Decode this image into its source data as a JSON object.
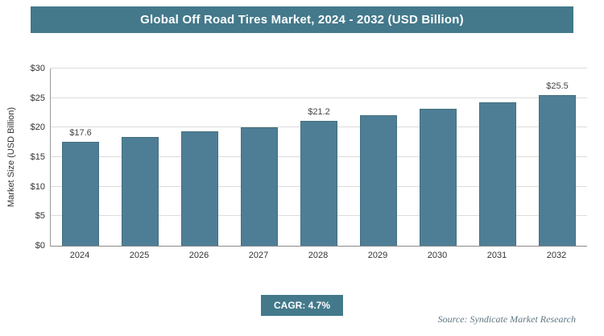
{
  "colors": {
    "header": "#43798b",
    "bar": "#4e7e96",
    "bar_border": "#44707f",
    "gridline": "#dcdcdc",
    "source_text": "#5f7582"
  },
  "chart_data": {
    "type": "bar",
    "title": "Global Off Road Tires Market, 2024 - 2032 (USD Billion)",
    "ylabel": "Market Size (USD Billion)",
    "xlabel": "",
    "categories": [
      "2024",
      "2025",
      "2026",
      "2027",
      "2028",
      "2029",
      "2030",
      "2031",
      "2032"
    ],
    "values": [
      17.6,
      18.4,
      19.3,
      20.1,
      21.2,
      22.1,
      23.2,
      24.3,
      25.5
    ],
    "labels": [
      "$17.6",
      "",
      "",
      "",
      "$21.2",
      "",
      "",
      "",
      "$25.5"
    ],
    "ylim": [
      0,
      30
    ],
    "yticks": [
      "$0",
      "$5",
      "$10",
      "$15",
      "$20",
      "$25",
      "$30"
    ],
    "grid": "horizontal",
    "legend": "none"
  },
  "footer": {
    "cagr_label": "CAGR: 4.7%",
    "source": "Source: Syndicate Market Research"
  }
}
